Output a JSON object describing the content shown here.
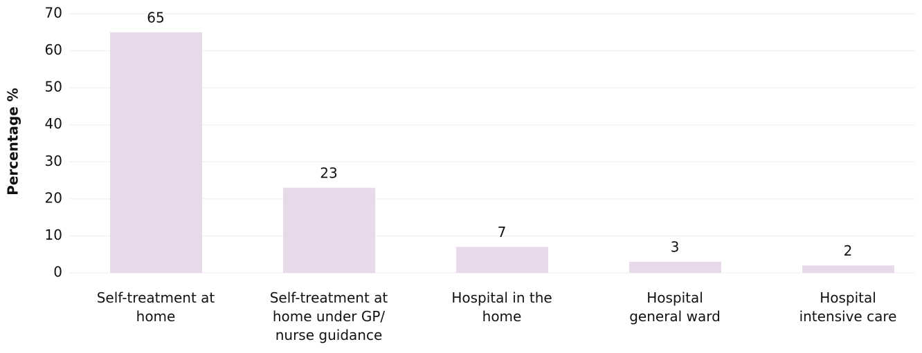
{
  "chart_data": {
    "type": "bar",
    "y_label": "Percentage %",
    "categories": [
      "Self-treatment at home",
      "Self-treatment at home under GP/ nurse guidance",
      "Hospital in the home",
      "Hospital general ward",
      "Hospital intensive care"
    ],
    "values": [
      65,
      23,
      7,
      3,
      2
    ],
    "color": "#e8d9ea",
    "ylim": [
      0,
      70
    ],
    "yticks": [
      0,
      10,
      20,
      30,
      40,
      50,
      60,
      70
    ],
    "grid": true
  }
}
